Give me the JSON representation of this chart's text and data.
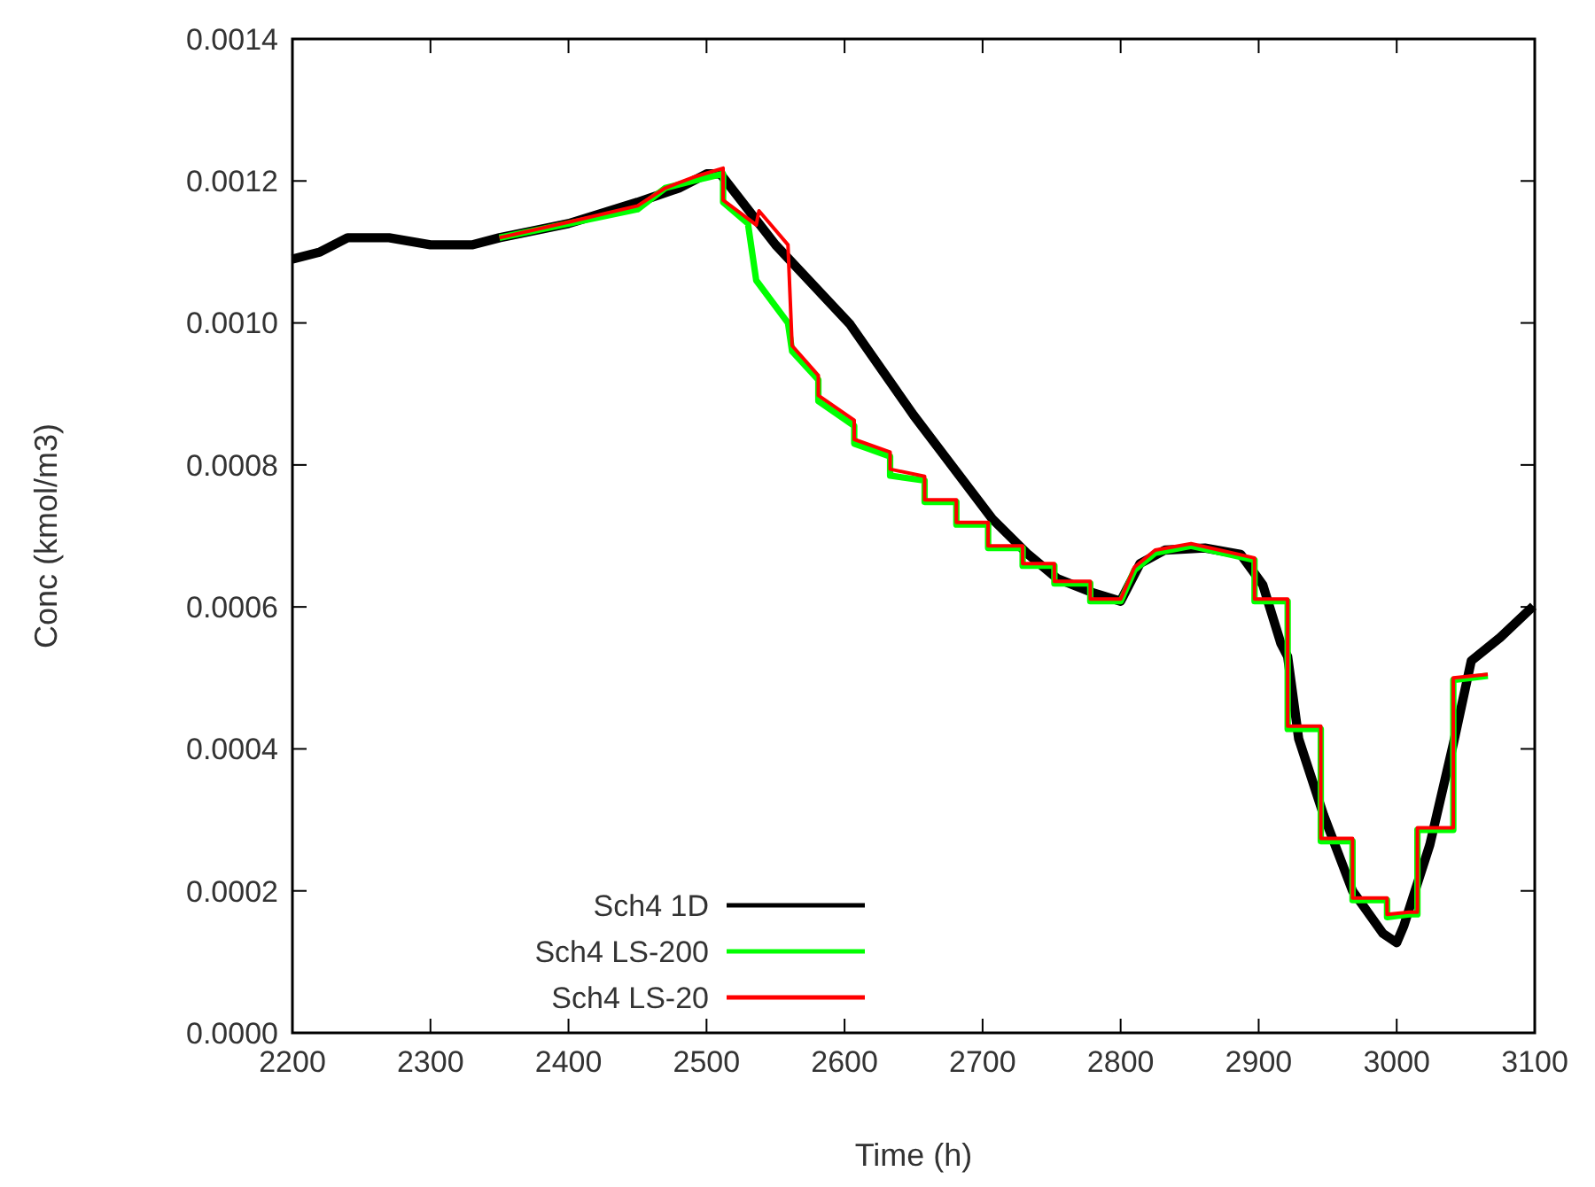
{
  "chart_data": {
    "type": "line",
    "xlabel": "Time (h)",
    "ylabel": "Conc (kmol/m3)",
    "xlim": [
      2200,
      3100
    ],
    "xticks": [
      2200,
      2300,
      2400,
      2500,
      2600,
      2700,
      2800,
      2900,
      3000,
      3100
    ],
    "ylim": [
      0,
      0.0014
    ],
    "yticks": [
      {
        "value": 0,
        "label": "0.0000"
      },
      {
        "value": 0.0002,
        "label": "0.0002"
      },
      {
        "value": 0.0004,
        "label": "0.0004"
      },
      {
        "value": 0.0006,
        "label": "0.0006"
      },
      {
        "value": 0.0008,
        "label": "0.0008"
      },
      {
        "value": 0.001,
        "label": "0.0010"
      },
      {
        "value": 0.0012,
        "label": "0.0012"
      },
      {
        "value": 0.0014,
        "label": "0.0014"
      }
    ],
    "grid": false,
    "legend": "bottom left",
    "line_style": "solid",
    "marker": "none",
    "series": [
      {
        "name": "Sch4 1D",
        "color": "#000000",
        "x": [
          2200,
          2220,
          2240,
          2270,
          2300,
          2330,
          2350,
          2400,
          2450,
          2480,
          2500,
          2510,
          2550,
          2604,
          2650,
          2707,
          2733,
          2754,
          2780,
          2800,
          2814,
          2832,
          2861,
          2887,
          2903,
          2916,
          2921,
          2929,
          2947,
          2968,
          2990,
          3000,
          3005,
          3024,
          3041,
          3054,
          3075,
          3099
        ],
        "values": [
          0.00109,
          0.0011,
          0.00112,
          0.00112,
          0.00111,
          0.00111,
          0.00112,
          0.00114,
          0.00117,
          0.00119,
          0.00121,
          0.00121,
          0.00111,
          0.000998,
          0.00087,
          0.000724,
          0.000674,
          0.00064,
          0.00062,
          0.000608,
          0.000661,
          0.00068,
          0.000683,
          0.000674,
          0.000631,
          0.000549,
          0.00053,
          0.000414,
          0.000307,
          0.0002,
          0.00014,
          0.000127,
          0.00015,
          0.000265,
          0.000407,
          0.000524,
          0.000557,
          0.000601
        ]
      },
      {
        "name": "Sch4 LS-200",
        "color": "#00ff00",
        "x": [
          2350,
          2400,
          2450,
          2470,
          2490,
          2512,
          2512,
          2530,
          2536,
          2559,
          2562,
          2581,
          2581,
          2607,
          2607,
          2633,
          2633,
          2658,
          2658,
          2681,
          2681,
          2704,
          2704,
          2729,
          2729,
          2752,
          2752,
          2778,
          2778,
          2800,
          2810,
          2825,
          2851,
          2897,
          2897,
          2921,
          2921,
          2945,
          2945,
          2968,
          2968,
          2993,
          2993,
          3009,
          3015,
          3015,
          3041,
          3041,
          3066
        ],
        "values": [
          0.00112,
          0.00114,
          0.00116,
          0.00119,
          0.0012,
          0.00121,
          0.00117,
          0.00114,
          0.00106,
          0.001,
          0.00096,
          0.00092,
          0.00089,
          0.000855,
          0.00083,
          0.000812,
          0.000785,
          0.000778,
          0.000748,
          0.000748,
          0.000716,
          0.000716,
          0.000683,
          0.000683,
          0.000658,
          0.000658,
          0.000633,
          0.000633,
          0.000608,
          0.000608,
          0.000652,
          0.000676,
          0.000686,
          0.000666,
          0.000608,
          0.000608,
          0.000428,
          0.000428,
          0.00027,
          0.00027,
          0.000187,
          0.000187,
          0.000163,
          0.000167,
          0.000167,
          0.000286,
          0.000286,
          0.000497,
          0.000503
        ]
      },
      {
        "name": "Sch4 LS-20",
        "color": "#ff0000",
        "x": [
          2350,
          2400,
          2450,
          2470,
          2490,
          2512,
          2512,
          2536,
          2538,
          2559,
          2562,
          2581,
          2581,
          2607,
          2607,
          2633,
          2633,
          2658,
          2658,
          2681,
          2681,
          2704,
          2704,
          2729,
          2729,
          2752,
          2752,
          2778,
          2778,
          2800,
          2810,
          2825,
          2851,
          2897,
          2897,
          2921,
          2921,
          2945,
          2945,
          2968,
          2968,
          2993,
          2993,
          3009,
          3015,
          3015,
          3041,
          3041,
          3066
        ],
        "values": [
          0.00112,
          0.001142,
          0.001165,
          0.00119,
          0.001205,
          0.001218,
          0.001173,
          0.001138,
          0.001158,
          0.00111,
          0.000968,
          0.000926,
          0.000898,
          0.000863,
          0.000836,
          0.000818,
          0.000794,
          0.000784,
          0.000751,
          0.000751,
          0.000719,
          0.000719,
          0.000686,
          0.000686,
          0.000661,
          0.000661,
          0.000636,
          0.000636,
          0.000611,
          0.000611,
          0.000656,
          0.00068,
          0.000689,
          0.000669,
          0.000611,
          0.000611,
          0.000432,
          0.000432,
          0.000274,
          0.000274,
          0.00019,
          0.00019,
          0.000167,
          0.00017,
          0.00017,
          0.000289,
          0.000289,
          0.0005,
          0.000505
        ]
      }
    ]
  }
}
